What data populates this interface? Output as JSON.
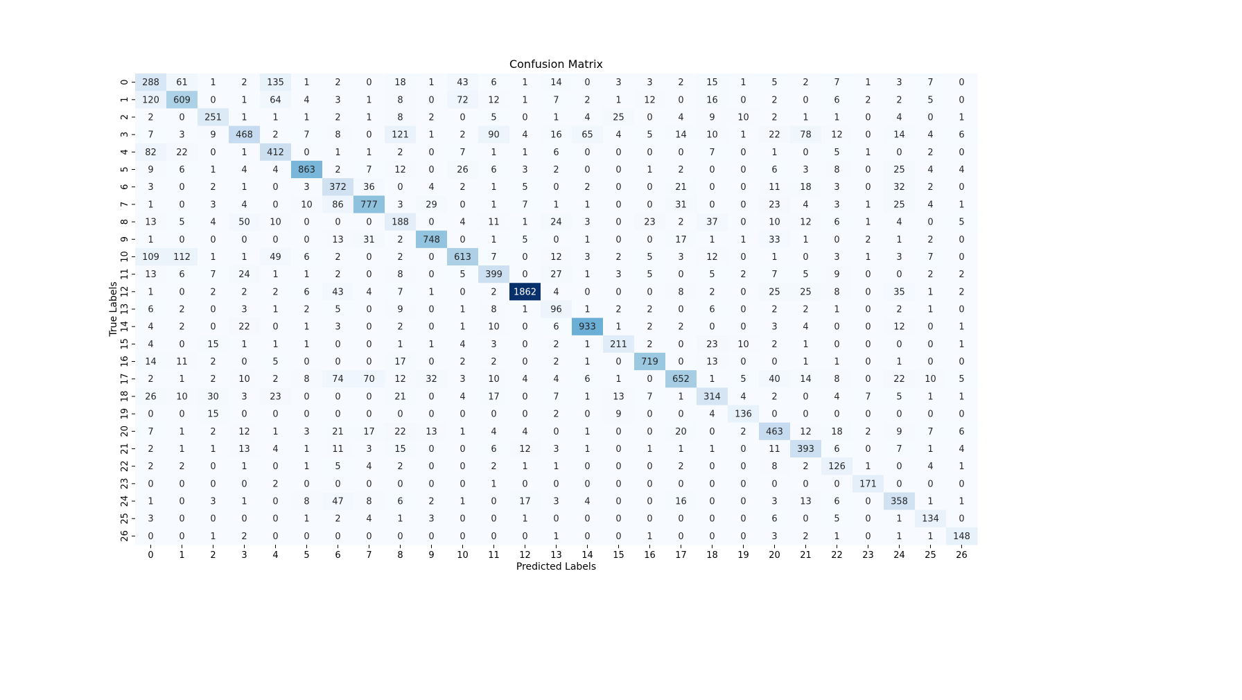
{
  "chart_data": {
    "type": "heatmap",
    "title": "Confusion Matrix",
    "xlabel": "Predicted Labels",
    "ylabel": "True Labels",
    "x_tick_labels": [
      "0",
      "1",
      "2",
      "3",
      "4",
      "5",
      "6",
      "7",
      "8",
      "9",
      "10",
      "11",
      "12",
      "13",
      "14",
      "15",
      "16",
      "17",
      "18",
      "19",
      "20",
      "21",
      "22",
      "23",
      "24",
      "25",
      "26"
    ],
    "y_tick_labels": [
      "0",
      "1",
      "2",
      "3",
      "4",
      "5",
      "6",
      "7",
      "8",
      "9",
      "10",
      "11",
      "12",
      "13",
      "14",
      "15",
      "16",
      "17",
      "18",
      "19",
      "20",
      "21",
      "22",
      "23",
      "24",
      "25",
      "26"
    ],
    "colormap": "Blues",
    "color_low": "#f7fbff",
    "color_high": "#08306b",
    "value_range": [
      0,
      1862
    ],
    "matrix": [
      [
        288,
        61,
        1,
        2,
        135,
        1,
        2,
        0,
        18,
        1,
        43,
        6,
        1,
        14,
        0,
        3,
        3,
        2,
        15,
        1,
        5,
        2,
        7,
        1,
        3,
        7,
        0
      ],
      [
        120,
        609,
        0,
        1,
        64,
        4,
        3,
        1,
        8,
        0,
        72,
        12,
        1,
        7,
        2,
        1,
        12,
        0,
        16,
        0,
        2,
        0,
        6,
        2,
        2,
        5,
        0
      ],
      [
        2,
        0,
        251,
        1,
        1,
        1,
        2,
        1,
        8,
        2,
        0,
        5,
        0,
        1,
        4,
        25,
        0,
        4,
        9,
        10,
        2,
        1,
        1,
        0,
        4,
        0,
        1
      ],
      [
        7,
        3,
        9,
        468,
        2,
        7,
        8,
        0,
        121,
        1,
        2,
        90,
        4,
        16,
        65,
        4,
        5,
        14,
        10,
        1,
        22,
        78,
        12,
        0,
        14,
        4,
        6
      ],
      [
        82,
        22,
        0,
        1,
        412,
        0,
        1,
        1,
        2,
        0,
        7,
        1,
        1,
        6,
        0,
        0,
        0,
        0,
        7,
        0,
        1,
        0,
        5,
        1,
        0,
        2,
        0
      ],
      [
        9,
        6,
        1,
        4,
        4,
        863,
        2,
        7,
        12,
        0,
        26,
        6,
        3,
        2,
        0,
        0,
        1,
        2,
        0,
        0,
        6,
        3,
        8,
        0,
        25,
        4,
        4
      ],
      [
        3,
        0,
        2,
        1,
        0,
        3,
        372,
        36,
        0,
        4,
        2,
        1,
        5,
        0,
        2,
        0,
        0,
        21,
        0,
        0,
        11,
        18,
        3,
        0,
        32,
        2,
        0
      ],
      [
        1,
        0,
        3,
        4,
        0,
        10,
        86,
        777,
        3,
        29,
        0,
        1,
        7,
        1,
        1,
        0,
        0,
        31,
        0,
        0,
        23,
        4,
        3,
        1,
        25,
        4,
        1
      ],
      [
        13,
        5,
        4,
        50,
        10,
        0,
        0,
        0,
        188,
        0,
        4,
        11,
        1,
        24,
        3,
        0,
        23,
        2,
        37,
        0,
        10,
        12,
        6,
        1,
        4,
        0,
        5
      ],
      [
        1,
        0,
        0,
        0,
        0,
        0,
        13,
        31,
        2,
        748,
        0,
        1,
        5,
        0,
        1,
        0,
        0,
        17,
        1,
        1,
        33,
        1,
        0,
        2,
        1,
        2,
        0
      ],
      [
        109,
        112,
        1,
        1,
        49,
        6,
        2,
        0,
        2,
        0,
        613,
        7,
        0,
        12,
        3,
        2,
        5,
        3,
        12,
        0,
        1,
        0,
        3,
        1,
        3,
        7,
        0
      ],
      [
        13,
        6,
        7,
        24,
        1,
        1,
        2,
        0,
        8,
        0,
        5,
        399,
        0,
        27,
        1,
        3,
        5,
        0,
        5,
        2,
        7,
        5,
        9,
        0,
        0,
        2,
        2
      ],
      [
        1,
        0,
        2,
        2,
        2,
        6,
        43,
        4,
        7,
        1,
        0,
        2,
        1862,
        4,
        0,
        0,
        0,
        8,
        2,
        0,
        25,
        25,
        8,
        0,
        35,
        1,
        2
      ],
      [
        6,
        2,
        0,
        3,
        1,
        2,
        5,
        0,
        9,
        0,
        1,
        8,
        1,
        96,
        1,
        2,
        2,
        0,
        6,
        0,
        2,
        2,
        1,
        0,
        2,
        1,
        0
      ],
      [
        4,
        2,
        0,
        22,
        0,
        1,
        3,
        0,
        2,
        0,
        1,
        10,
        0,
        6,
        933,
        1,
        2,
        2,
        0,
        0,
        3,
        4,
        0,
        0,
        12,
        0,
        1
      ],
      [
        4,
        0,
        15,
        1,
        1,
        1,
        0,
        0,
        1,
        1,
        4,
        3,
        0,
        2,
        1,
        211,
        2,
        0,
        23,
        10,
        2,
        1,
        0,
        0,
        0,
        0,
        1
      ],
      [
        14,
        11,
        2,
        0,
        5,
        0,
        0,
        0,
        17,
        0,
        2,
        2,
        0,
        2,
        1,
        0,
        719,
        0,
        13,
        0,
        0,
        1,
        1,
        0,
        1,
        0,
        0
      ],
      [
        2,
        1,
        2,
        10,
        2,
        8,
        74,
        70,
        12,
        32,
        3,
        10,
        4,
        4,
        6,
        1,
        0,
        652,
        1,
        5,
        40,
        14,
        8,
        0,
        22,
        10,
        5
      ],
      [
        26,
        10,
        30,
        3,
        23,
        0,
        0,
        0,
        21,
        0,
        4,
        17,
        0,
        7,
        1,
        13,
        7,
        1,
        314,
        4,
        2,
        0,
        4,
        7,
        5,
        1,
        1
      ],
      [
        0,
        0,
        15,
        0,
        0,
        0,
        0,
        0,
        0,
        0,
        0,
        0,
        0,
        2,
        0,
        9,
        0,
        0,
        4,
        136,
        0,
        0,
        0,
        0,
        0,
        0,
        0
      ],
      [
        7,
        1,
        2,
        12,
        1,
        3,
        21,
        17,
        22,
        13,
        1,
        4,
        4,
        0,
        1,
        0,
        0,
        20,
        0,
        2,
        463,
        12,
        18,
        2,
        9,
        7,
        6
      ],
      [
        2,
        1,
        1,
        13,
        4,
        1,
        11,
        3,
        15,
        0,
        0,
        6,
        12,
        3,
        1,
        0,
        1,
        1,
        1,
        0,
        11,
        393,
        6,
        0,
        7,
        1,
        4
      ],
      [
        2,
        2,
        0,
        1,
        0,
        1,
        5,
        4,
        2,
        0,
        0,
        2,
        1,
        1,
        0,
        0,
        0,
        2,
        0,
        0,
        8,
        2,
        126,
        1,
        0,
        4,
        1
      ],
      [
        0,
        0,
        0,
        0,
        2,
        0,
        0,
        0,
        0,
        0,
        0,
        1,
        0,
        0,
        0,
        0,
        0,
        0,
        0,
        0,
        0,
        0,
        0,
        171,
        0,
        0,
        0
      ],
      [
        1,
        0,
        3,
        1,
        0,
        8,
        47,
        8,
        6,
        2,
        1,
        0,
        17,
        3,
        4,
        0,
        0,
        16,
        0,
        0,
        3,
        13,
        6,
        0,
        358,
        1,
        1
      ],
      [
        3,
        0,
        0,
        0,
        0,
        1,
        2,
        4,
        1,
        3,
        0,
        0,
        1,
        0,
        0,
        0,
        0,
        0,
        0,
        0,
        6,
        0,
        5,
        0,
        1,
        134,
        0
      ],
      [
        0,
        0,
        1,
        2,
        0,
        0,
        0,
        0,
        0,
        0,
        0,
        0,
        0,
        1,
        0,
        0,
        1,
        0,
        0,
        0,
        3,
        2,
        1,
        0,
        1,
        1,
        148
      ]
    ],
    "grid": false,
    "colorbar": false
  }
}
